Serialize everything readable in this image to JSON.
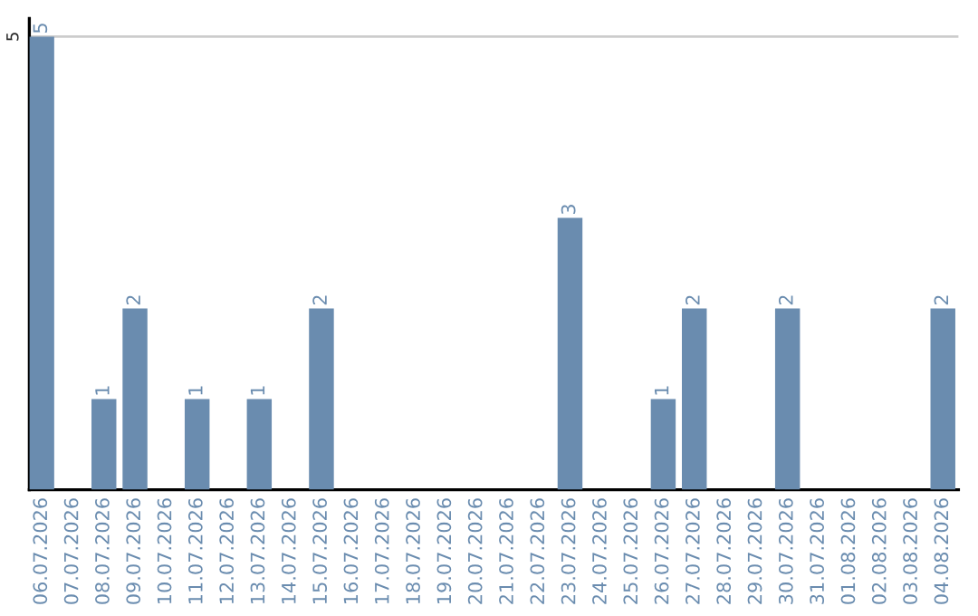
{
  "chart_data": {
    "type": "bar",
    "categories": [
      "06.07.2026",
      "07.07.2026",
      "08.07.2026",
      "09.07.2026",
      "10.07.2026",
      "11.07.2026",
      "12.07.2026",
      "13.07.2026",
      "14.07.2026",
      "15.07.2026",
      "16.07.2026",
      "17.07.2026",
      "18.07.2026",
      "19.07.2026",
      "20.07.2026",
      "21.07.2026",
      "22.07.2026",
      "23.07.2026",
      "24.07.2026",
      "25.07.2026",
      "26.07.2026",
      "27.07.2026",
      "28.07.2026",
      "29.07.2026",
      "30.07.2026",
      "31.07.2026",
      "01.08.2026",
      "02.08.2026",
      "03.08.2026",
      "04.08.2026"
    ],
    "values": [
      5,
      0,
      1,
      2,
      0,
      1,
      0,
      1,
      0,
      2,
      0,
      0,
      0,
      0,
      0,
      0,
      0,
      3,
      0,
      0,
      1,
      2,
      0,
      0,
      2,
      0,
      0,
      0,
      0,
      2
    ],
    "value_labels": [
      "5",
      null,
      "1",
      "2",
      null,
      "1",
      null,
      "1",
      null,
      "2",
      null,
      null,
      null,
      null,
      null,
      null,
      null,
      "3",
      null,
      null,
      "1",
      "2",
      null,
      null,
      "2",
      null,
      null,
      null,
      null,
      "2"
    ],
    "color": "#6a8caf",
    "ylim": [
      0,
      5.2
    ],
    "yticks": [
      5
    ],
    "grid": "y",
    "legend": false
  }
}
